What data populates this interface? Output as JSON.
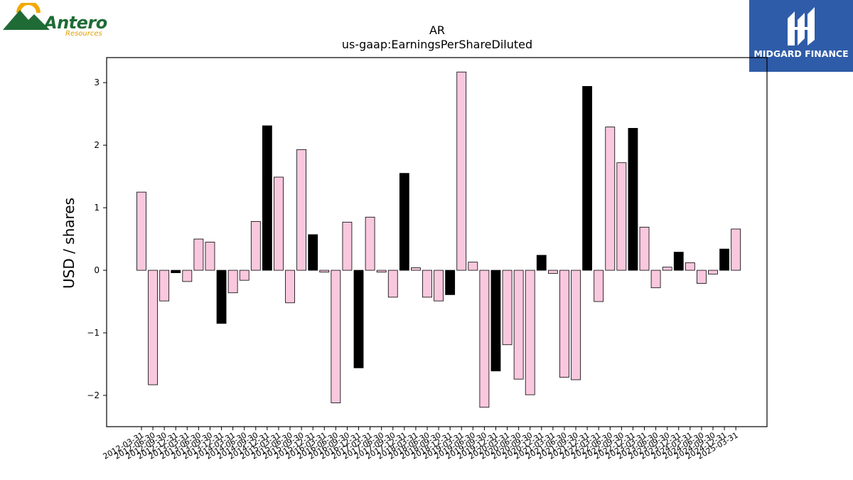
{
  "branding": {
    "left_logo_name": "Antero",
    "left_logo_sub": "Resources",
    "right_logo_name": "MIDGARD FINANCE"
  },
  "chart_data": {
    "type": "bar",
    "title": "AR",
    "subtitle": "us-gaap:EarningsPerShareDiluted",
    "xlabel": "",
    "ylabel": "USD / shares",
    "ylim": [
      -2.5,
      3.4
    ],
    "yticks": [
      -2,
      -1,
      0,
      1,
      2,
      3
    ],
    "ytick_labels": [
      "−2",
      "−1",
      "0",
      "1",
      "2",
      "3"
    ],
    "grid": false,
    "colors": {
      "pink": "#f9c8de",
      "black": "#000000",
      "edge": "#000000"
    },
    "categories": [
      "2012-03-31",
      "2012-06-30",
      "2012-09-30",
      "2012-12-31",
      "2013-03-31",
      "2013-06-30",
      "2013-09-30",
      "2013-12-31",
      "2014-03-31",
      "2014-06-30",
      "2014-09-30",
      "2014-12-31",
      "2015-03-31",
      "2015-06-30",
      "2015-09-30",
      "2015-12-31",
      "2016-03-31",
      "2016-06-30",
      "2016-09-30",
      "2016-12-31",
      "2017-03-31",
      "2017-06-30",
      "2017-09-30",
      "2017-12-31",
      "2018-03-31",
      "2018-06-30",
      "2018-09-30",
      "2018-12-31",
      "2019-03-31",
      "2019-06-30",
      "2019-09-30",
      "2019-12-31",
      "2020-03-31",
      "2020-06-30",
      "2020-09-30",
      "2020-12-31",
      "2021-03-31",
      "2021-06-30",
      "2021-09-30",
      "2021-12-31",
      "2022-03-31",
      "2022-06-30",
      "2022-09-30",
      "2022-12-31",
      "2023-03-31",
      "2023-06-30",
      "2023-09-30",
      "2023-12-31",
      "2024-03-31",
      "2024-06-30",
      "2024-09-30",
      "2024-12-31",
      "2025-03-31"
    ],
    "values": [
      1.25,
      -1.83,
      -0.49,
      -0.04,
      -0.18,
      0.5,
      0.45,
      -0.85,
      -0.36,
      -0.16,
      0.78,
      2.31,
      1.49,
      -0.52,
      1.93,
      0.57,
      -0.03,
      -2.12,
      0.77,
      -1.56,
      0.85,
      -0.03,
      -0.43,
      1.55,
      0.04,
      -0.43,
      -0.49,
      -0.39,
      3.17,
      0.13,
      -2.19,
      -1.61,
      -1.19,
      -1.74,
      -1.99,
      0.24,
      -0.05,
      -1.71,
      -1.75,
      2.94,
      -0.5,
      2.29,
      1.72,
      2.27,
      0.69,
      -0.28,
      0.05,
      0.29,
      0.12,
      -0.21,
      -0.06,
      0.34,
      0.66
    ],
    "bar_colors": [
      "pink",
      "pink",
      "pink",
      "black",
      "pink",
      "pink",
      "pink",
      "black",
      "pink",
      "pink",
      "pink",
      "black",
      "pink",
      "pink",
      "pink",
      "black",
      "pink",
      "pink",
      "pink",
      "black",
      "pink",
      "pink",
      "pink",
      "black",
      "pink",
      "pink",
      "pink",
      "black",
      "pink",
      "pink",
      "pink",
      "black",
      "pink",
      "pink",
      "pink",
      "black",
      "pink",
      "pink",
      "pink",
      "black",
      "pink",
      "pink",
      "pink",
      "black",
      "pink",
      "pink",
      "pink",
      "black",
      "pink",
      "pink",
      "pink",
      "black",
      "pink"
    ]
  }
}
